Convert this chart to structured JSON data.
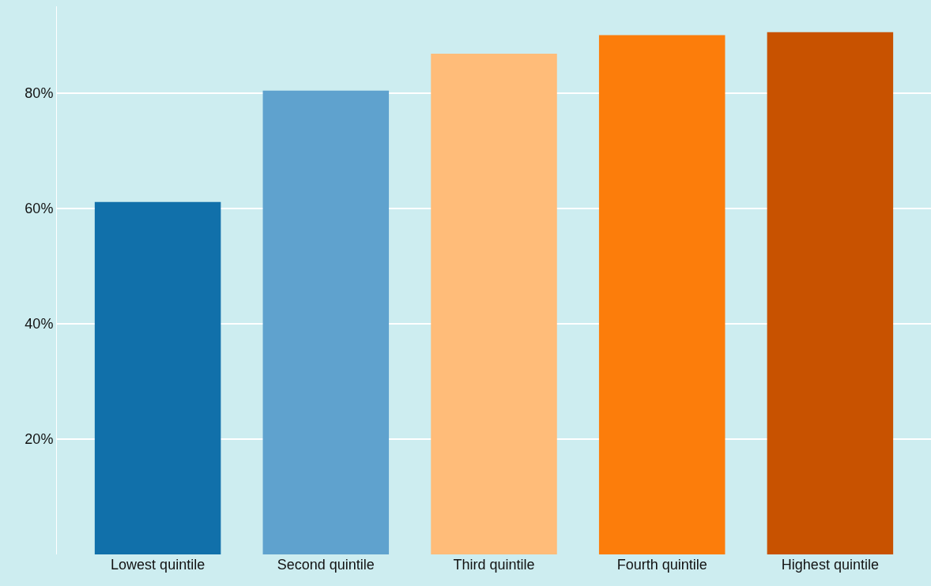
{
  "chart_data": {
    "type": "bar",
    "categories": [
      "Lowest quintile",
      "Second quintile",
      "Third quintile",
      "Fourth quintile",
      "Highest quintile"
    ],
    "values": [
      61.1,
      80.4,
      86.8,
      90.0,
      90.5
    ],
    "colors": [
      "#1170aa",
      "#5fa2ce",
      "#ffbc79",
      "#fc7d0b",
      "#c85200"
    ],
    "ylim": [
      0,
      95
    ],
    "yticks": [
      {
        "value": 20,
        "label": "20%"
      },
      {
        "value": 40,
        "label": "40%"
      },
      {
        "value": 60,
        "label": "60%"
      },
      {
        "value": 80,
        "label": "80%"
      }
    ],
    "grid": "y"
  }
}
